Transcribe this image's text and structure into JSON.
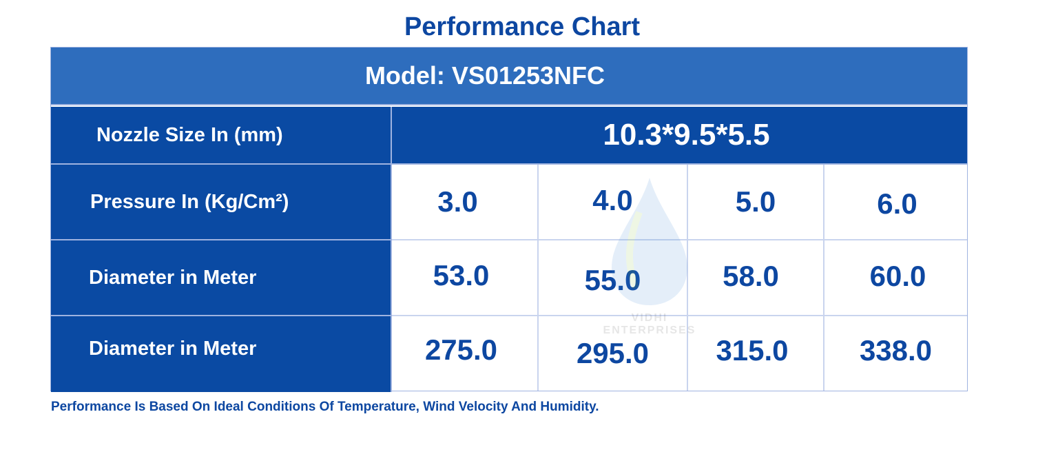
{
  "title": "Performance Chart",
  "model": "Model: VS01253NFC",
  "rows": {
    "nozzle": {
      "label": "Nozzle Size In (mm)",
      "value": "10.3*9.5*5.5"
    },
    "pressure": {
      "label": "Pressure In (Kg/Cm²)",
      "values": [
        "3.0",
        "4.0",
        "5.0",
        "6.0"
      ]
    },
    "diameter1": {
      "label": "Diameter in Meter",
      "values": [
        "53.0",
        "55.0",
        "58.0",
        "60.0"
      ]
    },
    "diameter2": {
      "label": "Diameter in Meter",
      "values": [
        "275.0",
        "295.0",
        "315.0",
        "338.0"
      ]
    }
  },
  "footer": "Performance Is Based On Ideal Conditions Of Temperature, Wind Velocity And Humidity.",
  "watermark": {
    "line1": "VIDHI",
    "line2": "ENTERPRISES",
    "icon": "water-drop-logo"
  },
  "colors": {
    "header_blue": "#2e6dbd",
    "dark_blue": "#0a4aa3",
    "text_blue": "#0d47a1"
  }
}
